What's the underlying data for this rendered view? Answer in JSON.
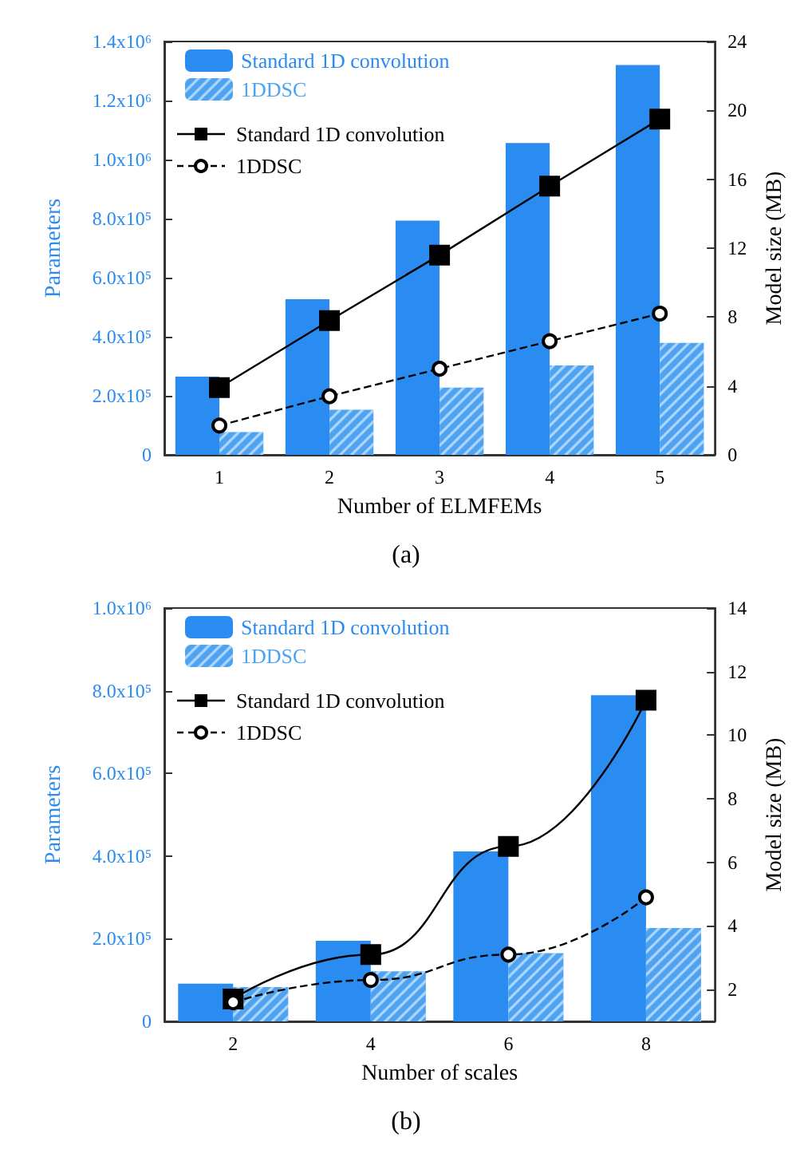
{
  "chart_data": [
    {
      "type": "bar",
      "title": "(a)",
      "xlabel": "Number of ELMFEMs",
      "ylabel": "Parameters",
      "y2label": "Model size (MB)",
      "categories": [
        "1",
        "2",
        "3",
        "4",
        "5"
      ],
      "legend": "top left",
      "series": [
        {
          "name": "Standard 1D convolution",
          "color": "#2a8cf0",
          "values": [
            265000,
            527000,
            793000,
            1056000,
            1320000
          ]
        },
        {
          "name": "1DDSC",
          "color": "#4da3f2",
          "values": [
            77000,
            153000,
            228000,
            303000,
            379000
          ]
        },
        {
          "name": "Standard 1D convolution",
          "type": "line",
          "axis": "y2",
          "color": "#000000",
          "marker": "square",
          "line_style": "solid",
          "values": [
            3.9,
            7.8,
            11.6,
            15.6,
            19.5
          ]
        },
        {
          "name": "1DDSC",
          "type": "line",
          "axis": "y2",
          "color": "#000000",
          "marker": "circle",
          "line_style": "dashed",
          "values": [
            1.7,
            3.4,
            5.0,
            6.6,
            8.2
          ]
        }
      ],
      "ylim": [
        0,
        1400000
      ],
      "yticks": [
        0,
        {
          "value": 200000,
          "label": "2.0x10⁵"
        },
        {
          "value": 400000,
          "label": "4.0x10⁵"
        },
        {
          "value": 600000,
          "label": "6.0x10⁵"
        },
        {
          "value": 800000,
          "label": "8.0x10⁵"
        },
        {
          "value": 1000000,
          "label": "1.0x10⁶"
        },
        {
          "value": 1200000,
          "label": "1.2x10⁶"
        },
        {
          "value": 1400000,
          "label": "1.4x10⁶"
        }
      ],
      "y2lim": [
        0,
        24
      ],
      "y2ticks": [
        0,
        4,
        8,
        12,
        16,
        20,
        24
      ],
      "grid": false
    },
    {
      "type": "bar",
      "title": "(b)",
      "xlabel": "Number of scales",
      "ylabel": "Parameters",
      "y2label": "Model size (MB)",
      "categories": [
        "2",
        "4",
        "6",
        "8"
      ],
      "legend": "top left",
      "series": [
        {
          "name": "Standard 1D convolution",
          "color": "#2a8cf0",
          "values": [
            91000,
            195000,
            411000,
            789000
          ]
        },
        {
          "name": "1DDSC",
          "color": "#4da3f2",
          "values": [
            83000,
            121000,
            165000,
            226000
          ]
        },
        {
          "name": "Standard 1D convolution",
          "type": "line",
          "axis": "y2",
          "color": "#000000",
          "marker": "square",
          "line_style": "solid",
          "values": [
            1.7,
            3.1,
            6.5,
            11.1
          ]
        },
        {
          "name": "1DDSC",
          "type": "line",
          "axis": "y2",
          "color": "#000000",
          "marker": "circle",
          "line_style": "dashed",
          "values": [
            1.6,
            2.3,
            3.1,
            4.9
          ]
        }
      ],
      "ylim": [
        0,
        1000000
      ],
      "yticks": [
        0,
        {
          "value": 200000,
          "label": "2.0x10⁵"
        },
        {
          "value": 400000,
          "label": "4.0x10⁵"
        },
        {
          "value": 600000,
          "label": "6.0x10⁵"
        },
        {
          "value": 800000,
          "label": "8.0x10⁵"
        },
        {
          "value": 1000000,
          "label": "1.0x10⁶"
        }
      ],
      "y2lim": [
        1,
        14
      ],
      "y2ticks": [
        2,
        4,
        6,
        8,
        10,
        12,
        14
      ],
      "grid": false
    }
  ]
}
